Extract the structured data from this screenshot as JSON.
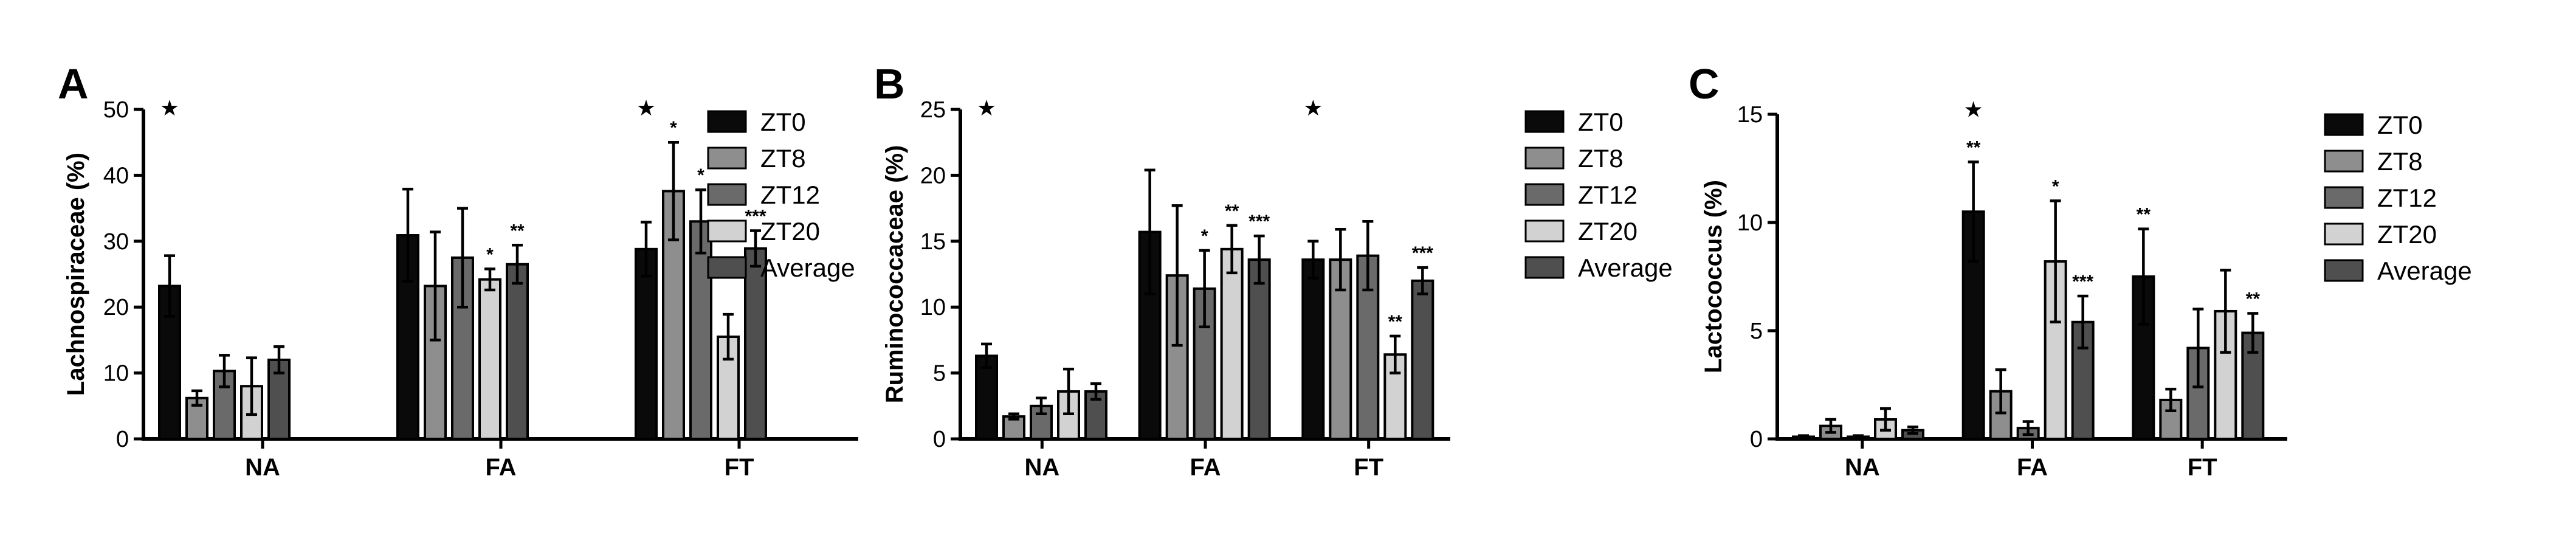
{
  "colors": {
    "ZT0": "#0a0a0a",
    "ZT8": "#8e8e8e",
    "ZT12": "#6a6a6a",
    "ZT20": "#d2d2d2",
    "Average": "#4f4f4f"
  },
  "chart_data": [
    {
      "type": "bar",
      "panel": "A",
      "ylabel": "Lachnospiraceae (%)",
      "ylim": [
        0,
        50
      ],
      "yticks": [
        0,
        10,
        20,
        30,
        40,
        50
      ],
      "categories": [
        "NA",
        "FA",
        "FT"
      ],
      "series": [
        {
          "name": "ZT0",
          "values": [
            23.2,
            30.9,
            28.8
          ],
          "errors": [
            4.6,
            7.0,
            4.1
          ]
        },
        {
          "name": "ZT8",
          "values": [
            6.2,
            23.2,
            37.6
          ],
          "errors": [
            1.1,
            8.2,
            7.4
          ]
        },
        {
          "name": "ZT12",
          "values": [
            10.3,
            27.5,
            33.0
          ],
          "errors": [
            2.4,
            7.5,
            4.8
          ]
        },
        {
          "name": "ZT20",
          "values": [
            8.0,
            24.2,
            15.5
          ],
          "errors": [
            4.3,
            1.6,
            3.4
          ]
        },
        {
          "name": "Average",
          "values": [
            12.0,
            26.5,
            28.9
          ],
          "errors": [
            2.0,
            2.9,
            2.7
          ]
        }
      ],
      "annotations": [
        {
          "category": "NA",
          "series": "ZT0",
          "text": "★",
          "kind": "star"
        },
        {
          "category": "FA",
          "series": "ZT20",
          "text": "*",
          "kind": "sig"
        },
        {
          "category": "FA",
          "series": "Average",
          "text": "**",
          "kind": "sig"
        },
        {
          "category": "FT",
          "series": "ZT0",
          "text": "★",
          "kind": "star"
        },
        {
          "category": "FT",
          "series": "ZT8",
          "text": "*",
          "kind": "sig"
        },
        {
          "category": "FT",
          "series": "ZT12",
          "text": "*",
          "kind": "sig"
        },
        {
          "category": "FT",
          "series": "Average",
          "text": "***",
          "kind": "sig"
        }
      ],
      "legend": [
        "ZT0",
        "ZT8",
        "ZT12",
        "ZT20",
        "Average"
      ],
      "legend_position": "right"
    },
    {
      "type": "bar",
      "panel": "B",
      "ylabel": "Ruminococcaceae (%)",
      "ylim": [
        0,
        25
      ],
      "yticks": [
        0,
        5,
        10,
        15,
        20,
        25
      ],
      "categories": [
        "NA",
        "FA",
        "FT"
      ],
      "series": [
        {
          "name": "ZT0",
          "values": [
            6.3,
            15.7,
            13.6
          ],
          "errors": [
            0.9,
            4.7,
            1.4
          ]
        },
        {
          "name": "ZT8",
          "values": [
            1.7,
            12.4,
            13.6
          ],
          "errors": [
            0.2,
            5.3,
            2.3
          ]
        },
        {
          "name": "ZT12",
          "values": [
            2.5,
            11.4,
            13.9
          ],
          "errors": [
            0.6,
            2.9,
            2.6
          ]
        },
        {
          "name": "ZT20",
          "values": [
            3.6,
            14.4,
            6.4
          ],
          "errors": [
            1.7,
            1.8,
            1.4
          ]
        },
        {
          "name": "Average",
          "values": [
            3.6,
            13.6,
            12.0
          ],
          "errors": [
            0.6,
            1.8,
            1.0
          ]
        }
      ],
      "annotations": [
        {
          "category": "NA",
          "series": "ZT0",
          "text": "★",
          "kind": "star"
        },
        {
          "category": "FA",
          "series": "ZT12",
          "text": "*",
          "kind": "sig"
        },
        {
          "category": "FA",
          "series": "ZT20",
          "text": "**",
          "kind": "sig"
        },
        {
          "category": "FA",
          "series": "Average",
          "text": "***",
          "kind": "sig"
        },
        {
          "category": "FT",
          "series": "ZT0",
          "text": "★",
          "kind": "star"
        },
        {
          "category": "FT",
          "series": "ZT20",
          "text": "**",
          "kind": "sig"
        },
        {
          "category": "FT",
          "series": "Average",
          "text": "***",
          "kind": "sig"
        }
      ],
      "legend": [
        "ZT0",
        "ZT8",
        "ZT12",
        "ZT20",
        "Average"
      ],
      "legend_position": "right"
    },
    {
      "type": "bar",
      "panel": "C",
      "ylabel": "Lactococcus (%)",
      "ylim": [
        0,
        15
      ],
      "yticks": [
        0,
        5,
        10,
        15
      ],
      "categories": [
        "NA",
        "FA",
        "FT"
      ],
      "series": [
        {
          "name": "ZT0",
          "values": [
            0.1,
            10.5,
            7.5
          ],
          "errors": [
            0.05,
            2.3,
            2.2
          ]
        },
        {
          "name": "ZT8",
          "values": [
            0.6,
            2.2,
            1.8
          ],
          "errors": [
            0.3,
            1.0,
            0.5
          ]
        },
        {
          "name": "ZT12",
          "values": [
            0.1,
            0.5,
            4.2
          ],
          "errors": [
            0.05,
            0.3,
            1.8
          ]
        },
        {
          "name": "ZT20",
          "values": [
            0.9,
            8.2,
            5.9
          ],
          "errors": [
            0.5,
            2.8,
            1.9
          ]
        },
        {
          "name": "Average",
          "values": [
            0.4,
            5.4,
            4.9
          ],
          "errors": [
            0.15,
            1.2,
            0.9
          ]
        }
      ],
      "annotations": [
        {
          "category": "FA",
          "series": "ZT0",
          "text": "**",
          "kind": "sig"
        },
        {
          "category": "FA",
          "series": "ZT0",
          "text": "★",
          "kind": "star",
          "stack": 1
        },
        {
          "category": "FA",
          "series": "ZT20",
          "text": "*",
          "kind": "sig"
        },
        {
          "category": "FA",
          "series": "Average",
          "text": "***",
          "kind": "sig"
        },
        {
          "category": "FT",
          "series": "ZT0",
          "text": "**",
          "kind": "sig"
        },
        {
          "category": "FT",
          "series": "Average",
          "text": "**",
          "kind": "sig"
        }
      ],
      "legend": [
        "ZT0",
        "ZT8",
        "ZT12",
        "ZT20",
        "Average"
      ],
      "legend_position": "right"
    }
  ]
}
